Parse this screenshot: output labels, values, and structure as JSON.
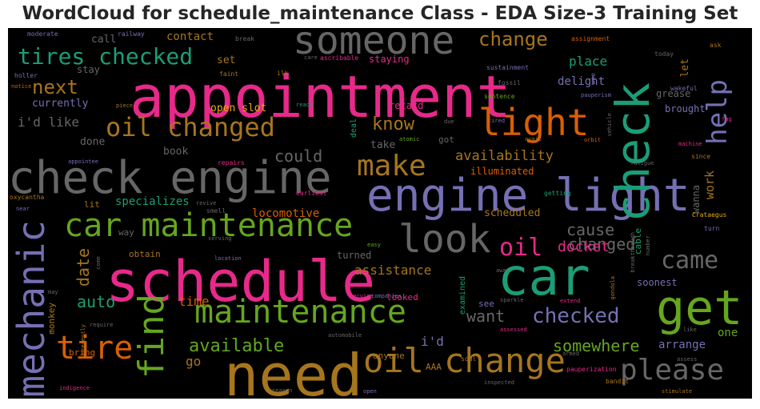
{
  "title": "WordCloud for schedule_maintenance Class - EDA Size-3 Training Set",
  "chart_data": {
    "type": "wordcloud",
    "title": "WordCloud for schedule_maintenance Class - EDA Size-3 Training Set",
    "background": "#000000",
    "words": [
      {
        "text": "appointment",
        "color": "#e7298a",
        "weight": 72
      },
      {
        "text": "schedule",
        "color": "#e7298a",
        "weight": 70
      },
      {
        "text": "need",
        "color": "#a6761d",
        "weight": 72
      },
      {
        "text": "check engine",
        "color": "#666666",
        "weight": 56
      },
      {
        "text": "engine light",
        "color": "#7570b3",
        "weight": 56
      },
      {
        "text": "car",
        "color": "#1b9e77",
        "weight": 64
      },
      {
        "text": "get",
        "color": "#66a61e",
        "weight": 60
      },
      {
        "text": "check",
        "color": "#1b9e77",
        "weight": 58
      },
      {
        "text": "someone",
        "color": "#666666",
        "weight": 48
      },
      {
        "text": "look",
        "color": "#666666",
        "weight": 48
      },
      {
        "text": "light",
        "color": "#d95f02",
        "weight": 46
      },
      {
        "text": "mechanic",
        "color": "#7570b3",
        "weight": 46
      },
      {
        "text": "oil change",
        "color": "#a6761d",
        "weight": 42
      },
      {
        "text": "car maintenance",
        "color": "#66a61e",
        "weight": 40
      },
      {
        "text": "maintenance",
        "color": "#66a61e",
        "weight": 40
      },
      {
        "text": "find",
        "color": "#66a61e",
        "weight": 44
      },
      {
        "text": "tire",
        "color": "#d95f02",
        "weight": 40
      },
      {
        "text": "please",
        "color": "#666666",
        "weight": 36
      },
      {
        "text": "make",
        "color": "#a6761d",
        "weight": 36
      },
      {
        "text": "oil changed",
        "color": "#a6761d",
        "weight": 32
      },
      {
        "text": "help",
        "color": "#7570b3",
        "weight": 34
      },
      {
        "text": "tires checked",
        "color": "#1b9e77",
        "weight": 28
      },
      {
        "text": "oil",
        "color": "#e7298a",
        "weight": 30
      },
      {
        "text": "came",
        "color": "#666666",
        "weight": 30
      },
      {
        "text": "checked",
        "color": "#7570b3",
        "weight": 26
      },
      {
        "text": "change",
        "color": "#a6761d",
        "weight": 24
      },
      {
        "text": "next",
        "color": "#a6761d",
        "weight": 24
      },
      {
        "text": "know",
        "color": "#a6761d",
        "weight": 22
      },
      {
        "text": "could",
        "color": "#666666",
        "weight": 20
      },
      {
        "text": "available",
        "color": "#66a61e",
        "weight": 22
      },
      {
        "text": "somewhere",
        "color": "#66a61e",
        "weight": 20
      },
      {
        "text": "want",
        "color": "#666666",
        "weight": 20
      },
      {
        "text": "changed",
        "color": "#666666",
        "weight": 20
      },
      {
        "text": "cause",
        "color": "#666666",
        "weight": 20
      },
      {
        "text": "auto",
        "color": "#1b9e77",
        "weight": 20
      },
      {
        "text": "date",
        "color": "#a6761d",
        "weight": 20
      },
      {
        "text": "docket",
        "color": "#e7298a",
        "weight": 18
      },
      {
        "text": "availability",
        "color": "#a6761d",
        "weight": 17
      },
      {
        "text": "i'd like",
        "color": "#666666",
        "weight": 16
      },
      {
        "text": "place",
        "color": "#1b9e77",
        "weight": 16
      },
      {
        "text": "assistance",
        "color": "#a6761d",
        "weight": 16
      },
      {
        "text": "delight",
        "color": "#7570b3",
        "weight": 14
      },
      {
        "text": "time",
        "color": "#d95f02",
        "weight": 16
      },
      {
        "text": "go",
        "color": "#a6761d",
        "weight": 16
      },
      {
        "text": "i'd",
        "color": "#7570b3",
        "weight": 16
      },
      {
        "text": "work",
        "color": "#a6761d",
        "weight": 15
      },
      {
        "text": "specializes",
        "color": "#1b9e77",
        "weight": 14
      },
      {
        "text": "locomotive",
        "color": "#d95f02",
        "weight": 14
      },
      {
        "text": "scheduled",
        "color": "#a6761d",
        "weight": 13
      },
      {
        "text": "let",
        "color": "#a6761d",
        "weight": 13
      },
      {
        "text": "arrange",
        "color": "#7570b3",
        "weight": 14
      },
      {
        "text": "one",
        "color": "#66a61e",
        "weight": 14
      },
      {
        "text": "contact",
        "color": "#a6761d",
        "weight": 14
      },
      {
        "text": "call",
        "color": "#666666",
        "weight": 13
      },
      {
        "text": "set",
        "color": "#a6761d",
        "weight": 13
      },
      {
        "text": "open slot",
        "color": "#e6ab02",
        "weight": 13
      },
      {
        "text": "currently",
        "color": "#7570b3",
        "weight": 13
      },
      {
        "text": "done",
        "color": "#666666",
        "weight": 13
      },
      {
        "text": "book",
        "color": "#666666",
        "weight": 13
      },
      {
        "text": "take",
        "color": "#666666",
        "weight": 13
      },
      {
        "text": "illuminated",
        "color": "#d95f02",
        "weight": 12
      },
      {
        "text": "brought",
        "color": "#7570b3",
        "weight": 12
      },
      {
        "text": "grease",
        "color": "#666666",
        "weight": 12
      },
      {
        "text": "staying",
        "color": "#e7298a",
        "weight": 12
      },
      {
        "text": "retard",
        "color": "#e7298a",
        "weight": 12
      },
      {
        "text": "stay",
        "color": "#666666",
        "weight": 12
      },
      {
        "text": "turned",
        "color": "#666666",
        "weight": 12
      },
      {
        "text": "soonest",
        "color": "#7570b3",
        "weight": 12
      },
      {
        "text": "wanna",
        "color": "#666666",
        "weight": 12
      },
      {
        "text": "obtain",
        "color": "#a6761d",
        "weight": 11
      },
      {
        "text": "way",
        "color": "#666666",
        "weight": 11
      },
      {
        "text": "lit",
        "color": "#a6761d",
        "weight": 11
      },
      {
        "text": "bring",
        "color": "#d95f02",
        "weight": 11
      },
      {
        "text": "monkey",
        "color": "#a6761d",
        "weight": 11
      },
      {
        "text": "anyone",
        "color": "#a6761d",
        "weight": 11
      },
      {
        "text": "looked",
        "color": "#e7298a",
        "weight": 11
      },
      {
        "text": "AAA",
        "color": "#a6761d",
        "weight": 11
      },
      {
        "text": "see",
        "color": "#7570b3",
        "weight": 11
      },
      {
        "text": "cable",
        "color": "#1b9e77",
        "weight": 11
      },
      {
        "text": "got",
        "color": "#666666",
        "weight": 11
      },
      {
        "text": "deal",
        "color": "#1b9e77",
        "weight": 10
      },
      {
        "text": "examined",
        "color": "#1b9e77",
        "weight": 10
      },
      {
        "text": "moderate",
        "color": "#7570b3",
        "weight": 8
      },
      {
        "text": "railway",
        "color": "#7570b3",
        "weight": 8
      },
      {
        "text": "break",
        "color": "#666666",
        "weight": 8
      },
      {
        "text": "assignment",
        "color": "#d95f02",
        "weight": 8
      },
      {
        "text": "ask",
        "color": "#a6761d",
        "weight": 8
      },
      {
        "text": "holler",
        "color": "#7570b3",
        "weight": 8
      },
      {
        "text": "notice",
        "color": "#d95f02",
        "weight": 7
      },
      {
        "text": "faint",
        "color": "#a6761d",
        "weight": 8
      },
      {
        "text": "ilk",
        "color": "#a6761d",
        "weight": 8
      },
      {
        "text": "care",
        "color": "#666666",
        "weight": 7
      },
      {
        "text": "ascribable",
        "color": "#e7298a",
        "weight": 8
      },
      {
        "text": "today",
        "color": "#666666",
        "weight": 8
      },
      {
        "text": "sustainment",
        "color": "#7570b3",
        "weight": 8
      },
      {
        "text": "fossil",
        "color": "#666666",
        "weight": 8
      },
      {
        "text": "wee",
        "color": "#7570b3",
        "weight": 8
      },
      {
        "text": "wakeful",
        "color": "#7570b3",
        "weight": 8
      },
      {
        "text": "pauperism",
        "color": "#7570b3",
        "weight": 7
      },
      {
        "text": "piece",
        "color": "#a6761d",
        "weight": 7
      },
      {
        "text": "reach",
        "color": "#1b9e77",
        "weight": 7
      },
      {
        "text": "sentence",
        "color": "#66a61e",
        "weight": 8
      },
      {
        "text": "due",
        "color": "#666666",
        "weight": 7
      },
      {
        "text": "vehicle",
        "color": "#666666",
        "weight": 7
      },
      {
        "text": "fag",
        "color": "#e7298a",
        "weight": 7
      },
      {
        "text": "atomic",
        "color": "#66a61e",
        "weight": 7
      },
      {
        "text": "avail",
        "color": "#a6761d",
        "weight": 7
      },
      {
        "text": "tired",
        "color": "#7570b3",
        "weight": 7
      },
      {
        "text": "orbit",
        "color": "#d95f02",
        "weight": 7
      },
      {
        "text": "machine",
        "color": "#e7298a",
        "weight": 7
      },
      {
        "text": "since",
        "color": "#a6761d",
        "weight": 8
      },
      {
        "text": "fatigue",
        "color": "#666666",
        "weight": 7
      },
      {
        "text": "appointee",
        "color": "#7570b3",
        "weight": 7
      },
      {
        "text": "repairs",
        "color": "#e7298a",
        "weight": 8
      },
      {
        "text": "oxycantha",
        "color": "#a6761d",
        "weight": 8
      },
      {
        "text": "near",
        "color": "#7570b3",
        "weight": 7
      },
      {
        "text": "smell",
        "color": "#666666",
        "weight": 8
      },
      {
        "text": "revive",
        "color": "#666666",
        "weight": 7
      },
      {
        "text": "earliest",
        "color": "#e7298a",
        "weight": 8
      },
      {
        "text": "getting",
        "color": "#1b9e77",
        "weight": 8
      },
      {
        "text": "Crataegus",
        "color": "#e6ab02",
        "weight": 8
      },
      {
        "text": "turn",
        "color": "#7570b3",
        "weight": 8
      },
      {
        "text": "serving",
        "color": "#666666",
        "weight": 7
      },
      {
        "text": "easy",
        "color": "#66a61e",
        "weight": 7
      },
      {
        "text": "location",
        "color": "#7570b3",
        "weight": 7
      },
      {
        "text": "breakthrough",
        "color": "#666666",
        "weight": 7
      },
      {
        "text": "number",
        "color": "#666666",
        "weight": 7
      },
      {
        "text": "come",
        "color": "#666666",
        "weight": 7
      },
      {
        "text": "away",
        "color": "#666666",
        "weight": 7
      },
      {
        "text": "gondola",
        "color": "#a6761d",
        "weight": 7
      },
      {
        "text": "may",
        "color": "#666666",
        "weight": 7
      },
      {
        "text": "service",
        "color": "#e7298a",
        "weight": 7
      },
      {
        "text": "companies",
        "color": "#7570b3",
        "weight": 7
      },
      {
        "text": "sparkle",
        "color": "#666666",
        "weight": 7
      },
      {
        "text": "extend",
        "color": "#e7298a",
        "weight": 7
      },
      {
        "text": "require",
        "color": "#666666",
        "weight": 7
      },
      {
        "text": "assessed",
        "color": "#e7298a",
        "weight": 7
      },
      {
        "text": "like",
        "color": "#666666",
        "weight": 7
      },
      {
        "text": "presently",
        "color": "#a6761d",
        "weight": 7
      },
      {
        "text": "automobile",
        "color": "#666666",
        "weight": 7
      },
      {
        "text": "armed",
        "color": "#666666",
        "weight": 7
      },
      {
        "text": "assess",
        "color": "#666666",
        "weight": 7
      },
      {
        "text": "soul",
        "color": "#a6761d",
        "weight": 8
      },
      {
        "text": "pauperization",
        "color": "#e7298a",
        "weight": 8
      },
      {
        "text": "indigence",
        "color": "#e7298a",
        "weight": 7
      },
      {
        "text": "reason",
        "color": "#666666",
        "weight": 7
      },
      {
        "text": "open",
        "color": "#7570b3",
        "weight": 7
      },
      {
        "text": "inspected",
        "color": "#666666",
        "weight": 7
      },
      {
        "text": "bandit",
        "color": "#a6761d",
        "weight": 8
      },
      {
        "text": "stimulate",
        "color": "#a6761d",
        "weight": 7
      }
    ]
  }
}
